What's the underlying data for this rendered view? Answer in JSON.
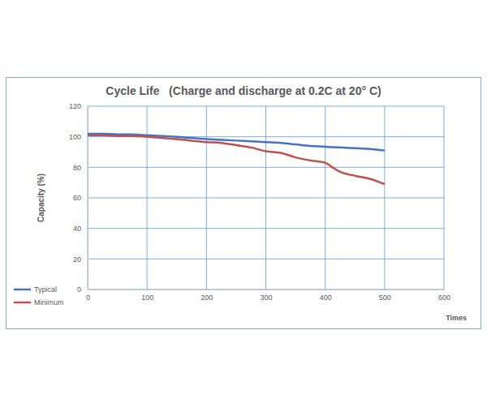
{
  "chart_data": {
    "type": "line",
    "title": "Cycle Life   (Charge and discharge at 0.2C at 20° C)",
    "x_label": "Times",
    "y_label": "Capacity (%)",
    "x": [
      0,
      25,
      50,
      75,
      100,
      150,
      200,
      225,
      250,
      275,
      300,
      325,
      350,
      375,
      400,
      412,
      425,
      450,
      475,
      500
    ],
    "series": [
      {
        "name": "Typical",
        "color": "#4472c4",
        "values": [
          102,
          102,
          101.5,
          101.5,
          101,
          100,
          98.5,
          98,
          97.5,
          97,
          96.5,
          96,
          95,
          94,
          93.5,
          93.2,
          93,
          92.5,
          92,
          91
        ]
      },
      {
        "name": "Minimum",
        "color": "#c0504d",
        "values": [
          101,
          101,
          100.5,
          100.5,
          100,
          98.5,
          96.5,
          96,
          94.5,
          93,
          90.5,
          89.5,
          86.5,
          84.5,
          83,
          80,
          77,
          74.5,
          72.5,
          69
        ]
      }
    ],
    "xlim": [
      0,
      600
    ],
    "xticks": [
      0,
      100,
      200,
      300,
      400,
      500,
      600
    ],
    "ylim": [
      0,
      120
    ],
    "yticks": [
      0,
      20,
      40,
      60,
      80,
      100,
      120
    ],
    "grid": true,
    "legend": "left"
  }
}
